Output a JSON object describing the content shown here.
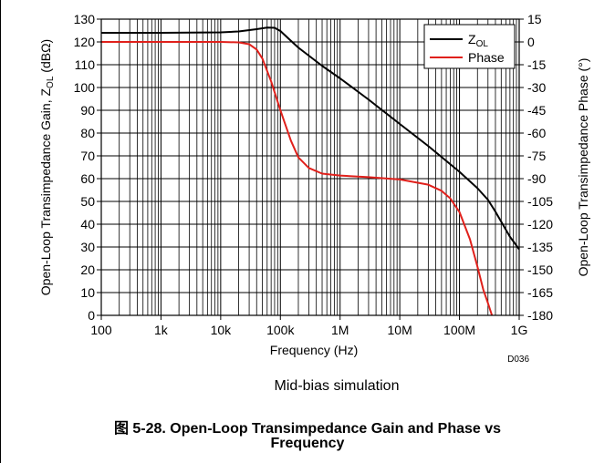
{
  "chart_data": {
    "type": "line",
    "xlabel": "Frequency (Hz)",
    "ylabel_left_main": "Open-Loop Transimpedance Gain, Z",
    "ylabel_left_sub": "OL",
    "ylabel_left_unit": " (dBΩ)",
    "ylabel_right": "Open-Loop Transimpedance Phase (°)",
    "x_scale": "log",
    "xlim": [
      100,
      1000000000
    ],
    "x_ticks": [
      {
        "value": 100,
        "label": "100"
      },
      {
        "value": 1000,
        "label": "1k"
      },
      {
        "value": 10000,
        "label": "10k"
      },
      {
        "value": 100000,
        "label": "100k"
      },
      {
        "value": 1000000,
        "label": "1M"
      },
      {
        "value": 10000000,
        "label": "10M"
      },
      {
        "value": 100000000,
        "label": "100M"
      },
      {
        "value": 1000000000,
        "label": "1G"
      }
    ],
    "ylim_left": [
      0,
      130
    ],
    "y_ticks_left": [
      0,
      10,
      20,
      30,
      40,
      50,
      60,
      70,
      80,
      90,
      100,
      110,
      120,
      130
    ],
    "ylim_right": [
      -180,
      15
    ],
    "y_ticks_right": [
      15,
      0,
      -15,
      -30,
      -45,
      -60,
      -75,
      -90,
      -105,
      -120,
      -135,
      -150,
      -165,
      -180
    ],
    "grid": true,
    "legend_position": "top-right",
    "series": [
      {
        "name": "Z",
        "name_sub": "OL",
        "axis": "left",
        "color": "#000000",
        "x": [
          100,
          1000,
          10000,
          20000,
          40000,
          60000,
          80000,
          100000,
          150000,
          200000,
          500000,
          1000000,
          3000000,
          10000000,
          30000000,
          100000000,
          200000000,
          300000000,
          400000000,
          700000000,
          1000000000
        ],
        "y": [
          124,
          124,
          124.2,
          124.6,
          125.6,
          126.3,
          126.2,
          124.8,
          120.5,
          117.5,
          109.5,
          104,
          94.7,
          84,
          74.3,
          63,
          55.8,
          50.7,
          45.5,
          34.5,
          29
        ]
      },
      {
        "name": "Phase",
        "axis": "right",
        "color": "#e0201b",
        "x": [
          100,
          1000,
          10000,
          20000,
          30000,
          40000,
          50000,
          70000,
          100000,
          150000,
          200000,
          300000,
          500000,
          1000000,
          3000000,
          10000000,
          30000000,
          50000000,
          70000000,
          100000000,
          150000000,
          200000000,
          250000000,
          300000000,
          350000000
        ],
        "y": [
          0,
          0,
          0,
          -0.3,
          -1.5,
          -5,
          -11,
          -26,
          -45,
          -65,
          -76,
          -83,
          -86.7,
          -88,
          -89,
          -90.5,
          -94,
          -98,
          -103,
          -112,
          -130,
          -148,
          -163,
          -172,
          -180
        ]
      }
    ],
    "note": "D036",
    "subtitle": "Mid-bias simulation"
  },
  "caption": {
    "line1": "图 5-28. Open-Loop Transimpedance Gain and Phase vs",
    "line2": "Frequency"
  }
}
